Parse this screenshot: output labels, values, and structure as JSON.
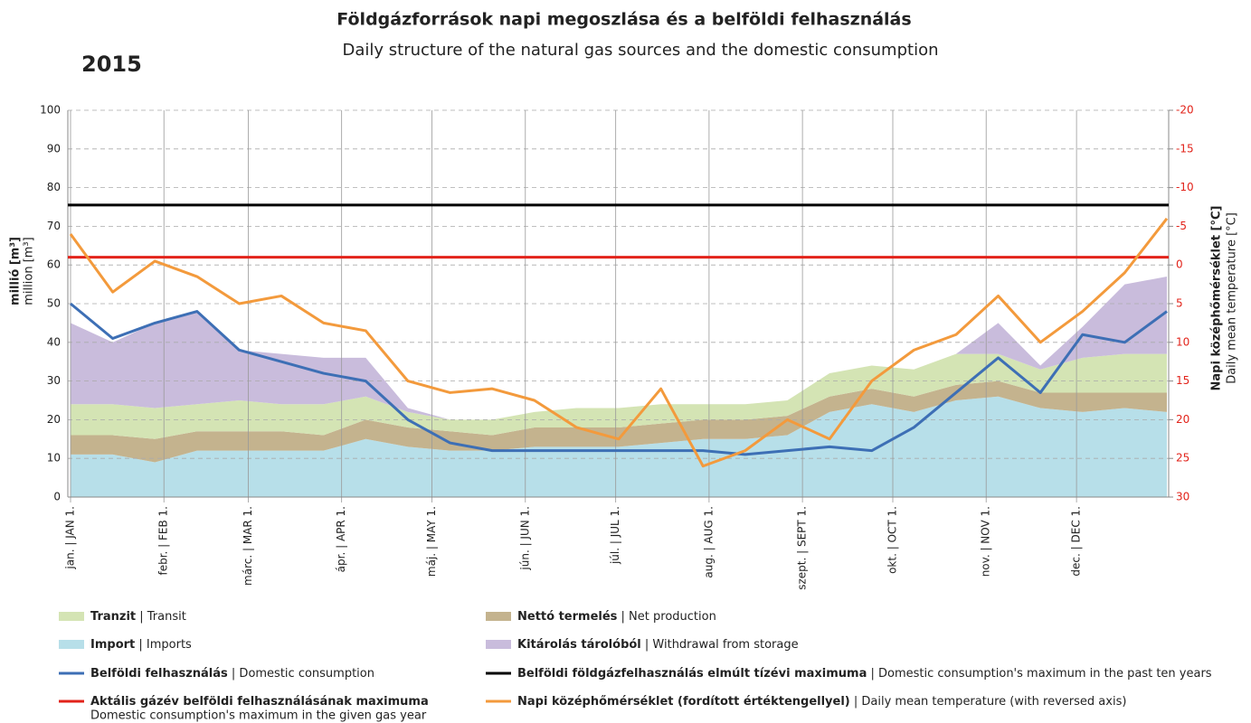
{
  "chart_data": {
    "type": "area",
    "title": "Földgázforrások napi megoszlása és a belföldi felhasználás",
    "subtitle": "Daily structure of the natural gas sources and the domestic consumption",
    "year": "2015",
    "y_label": "millió [m³]",
    "y_label_en": "million [m³]",
    "y2_label": "Napi középhőmérséklet [°C]",
    "y2_label_en": "Daily mean temperature [°C]",
    "stacked": true,
    "grid": true,
    "y2_reversed": true,
    "x": [
      1,
      15,
      29,
      43,
      57,
      71,
      85,
      99,
      113,
      127,
      141,
      155,
      169,
      183,
      197,
      211,
      225,
      239,
      253,
      267,
      281,
      295,
      309,
      323,
      337,
      351,
      365
    ],
    "xlim": [
      1,
      365
    ],
    "xticks": [
      {
        "value": 1,
        "label": "jan. | JAN 1."
      },
      {
        "value": 32,
        "label": "febr. | FEB 1."
      },
      {
        "value": 60,
        "label": "márc. | MAR 1."
      },
      {
        "value": 91,
        "label": "ápr. | APR 1."
      },
      {
        "value": 121,
        "label": "máj. | MAY 1."
      },
      {
        "value": 152,
        "label": "jún. | JUN 1."
      },
      {
        "value": 182,
        "label": "júl. | JUL 1."
      },
      {
        "value": 213,
        "label": "aug. | AUG 1."
      },
      {
        "value": 244,
        "label": "szept. | SEPT 1."
      },
      {
        "value": 274,
        "label": "okt. | OCT 1."
      },
      {
        "value": 305,
        "label": "nov. | NOV 1."
      },
      {
        "value": 335,
        "label": "dec. | DEC 1."
      }
    ],
    "ylim": [
      0,
      100
    ],
    "yticks": [
      0,
      10,
      20,
      30,
      40,
      50,
      60,
      70,
      80,
      90,
      100
    ],
    "y2lim": [
      30,
      -20
    ],
    "y2ticks": [
      30,
      25,
      20,
      15,
      10,
      5,
      0,
      -5,
      -10,
      -15,
      -20
    ],
    "series": [
      {
        "name": "Import",
        "detail": "| Imports",
        "type": "area",
        "color": "#b7dfe9",
        "values": [
          11,
          11,
          9,
          12,
          12,
          12,
          12,
          15,
          13,
          12,
          12,
          13,
          13,
          13,
          14,
          15,
          15,
          16,
          22,
          24,
          22,
          25,
          26,
          23,
          22,
          23,
          22
        ]
      },
      {
        "name": "Nettó termelés",
        "detail": "| Net production",
        "type": "area",
        "color": "#c4b38e",
        "values": [
          5,
          5,
          6,
          5,
          5,
          5,
          4,
          5,
          5,
          5,
          4,
          5,
          5,
          5,
          5,
          5,
          5,
          5,
          4,
          4,
          4,
          4,
          4,
          4,
          5,
          4,
          5
        ]
      },
      {
        "name": "Tranzit",
        "detail": "| Transit",
        "type": "area",
        "color": "#d4e4b4",
        "values": [
          8,
          8,
          8,
          7,
          8,
          7,
          8,
          6,
          4,
          3,
          4,
          4,
          5,
          5,
          5,
          4,
          4,
          4,
          6,
          6,
          7,
          8,
          7,
          6,
          9,
          10,
          10
        ]
      },
      {
        "name": "Kitárolás tárolóból",
        "detail": "| Withdrawal from storage",
        "type": "area",
        "color": "#c9bcdc",
        "values": [
          21,
          16,
          22,
          24,
          13,
          13,
          12,
          10,
          1,
          0,
          0,
          0,
          0,
          0,
          0,
          0,
          0,
          0,
          0,
          0,
          0,
          0,
          8,
          1,
          8,
          18,
          20
        ]
      },
      {
        "name": "Belföldi felhasználás",
        "detail": "| Domestic consumption",
        "type": "line",
        "color": "#3d6fb5",
        "values": [
          50,
          41,
          45,
          48,
          38,
          35,
          32,
          30,
          20,
          14,
          12,
          12,
          12,
          12,
          12,
          12,
          11,
          12,
          13,
          12,
          18,
          27,
          36,
          27,
          42,
          40,
          48
        ]
      },
      {
        "name": "Napi középhőmérséklet (fordított értéktengellyel)",
        "detail": "| Daily mean temperature (with reversed axis)",
        "type": "line",
        "axis": "y2",
        "color": "#f39a3c",
        "values": [
          -4,
          3.5,
          -0.5,
          1.5,
          5,
          4,
          7.5,
          8.5,
          15,
          16.5,
          16,
          17.5,
          21,
          22.5,
          16,
          26,
          24,
          20,
          22.5,
          15,
          11,
          9,
          4,
          10,
          6,
          1,
          -6
        ]
      }
    ],
    "reference_lines": [
      {
        "name": "Belföldi földgázfelhasználás elmúlt tízévi maximuma",
        "detail": "| Domestic consumption's maximum in the past ten years",
        "value": 75.5,
        "color": "#000000"
      },
      {
        "name": "Aktális gázév belföldi felhasználásának maximuma",
        "note": "Domestic consumption's maximum in the given gas year",
        "value": 62,
        "color": "#e2231a"
      }
    ]
  }
}
